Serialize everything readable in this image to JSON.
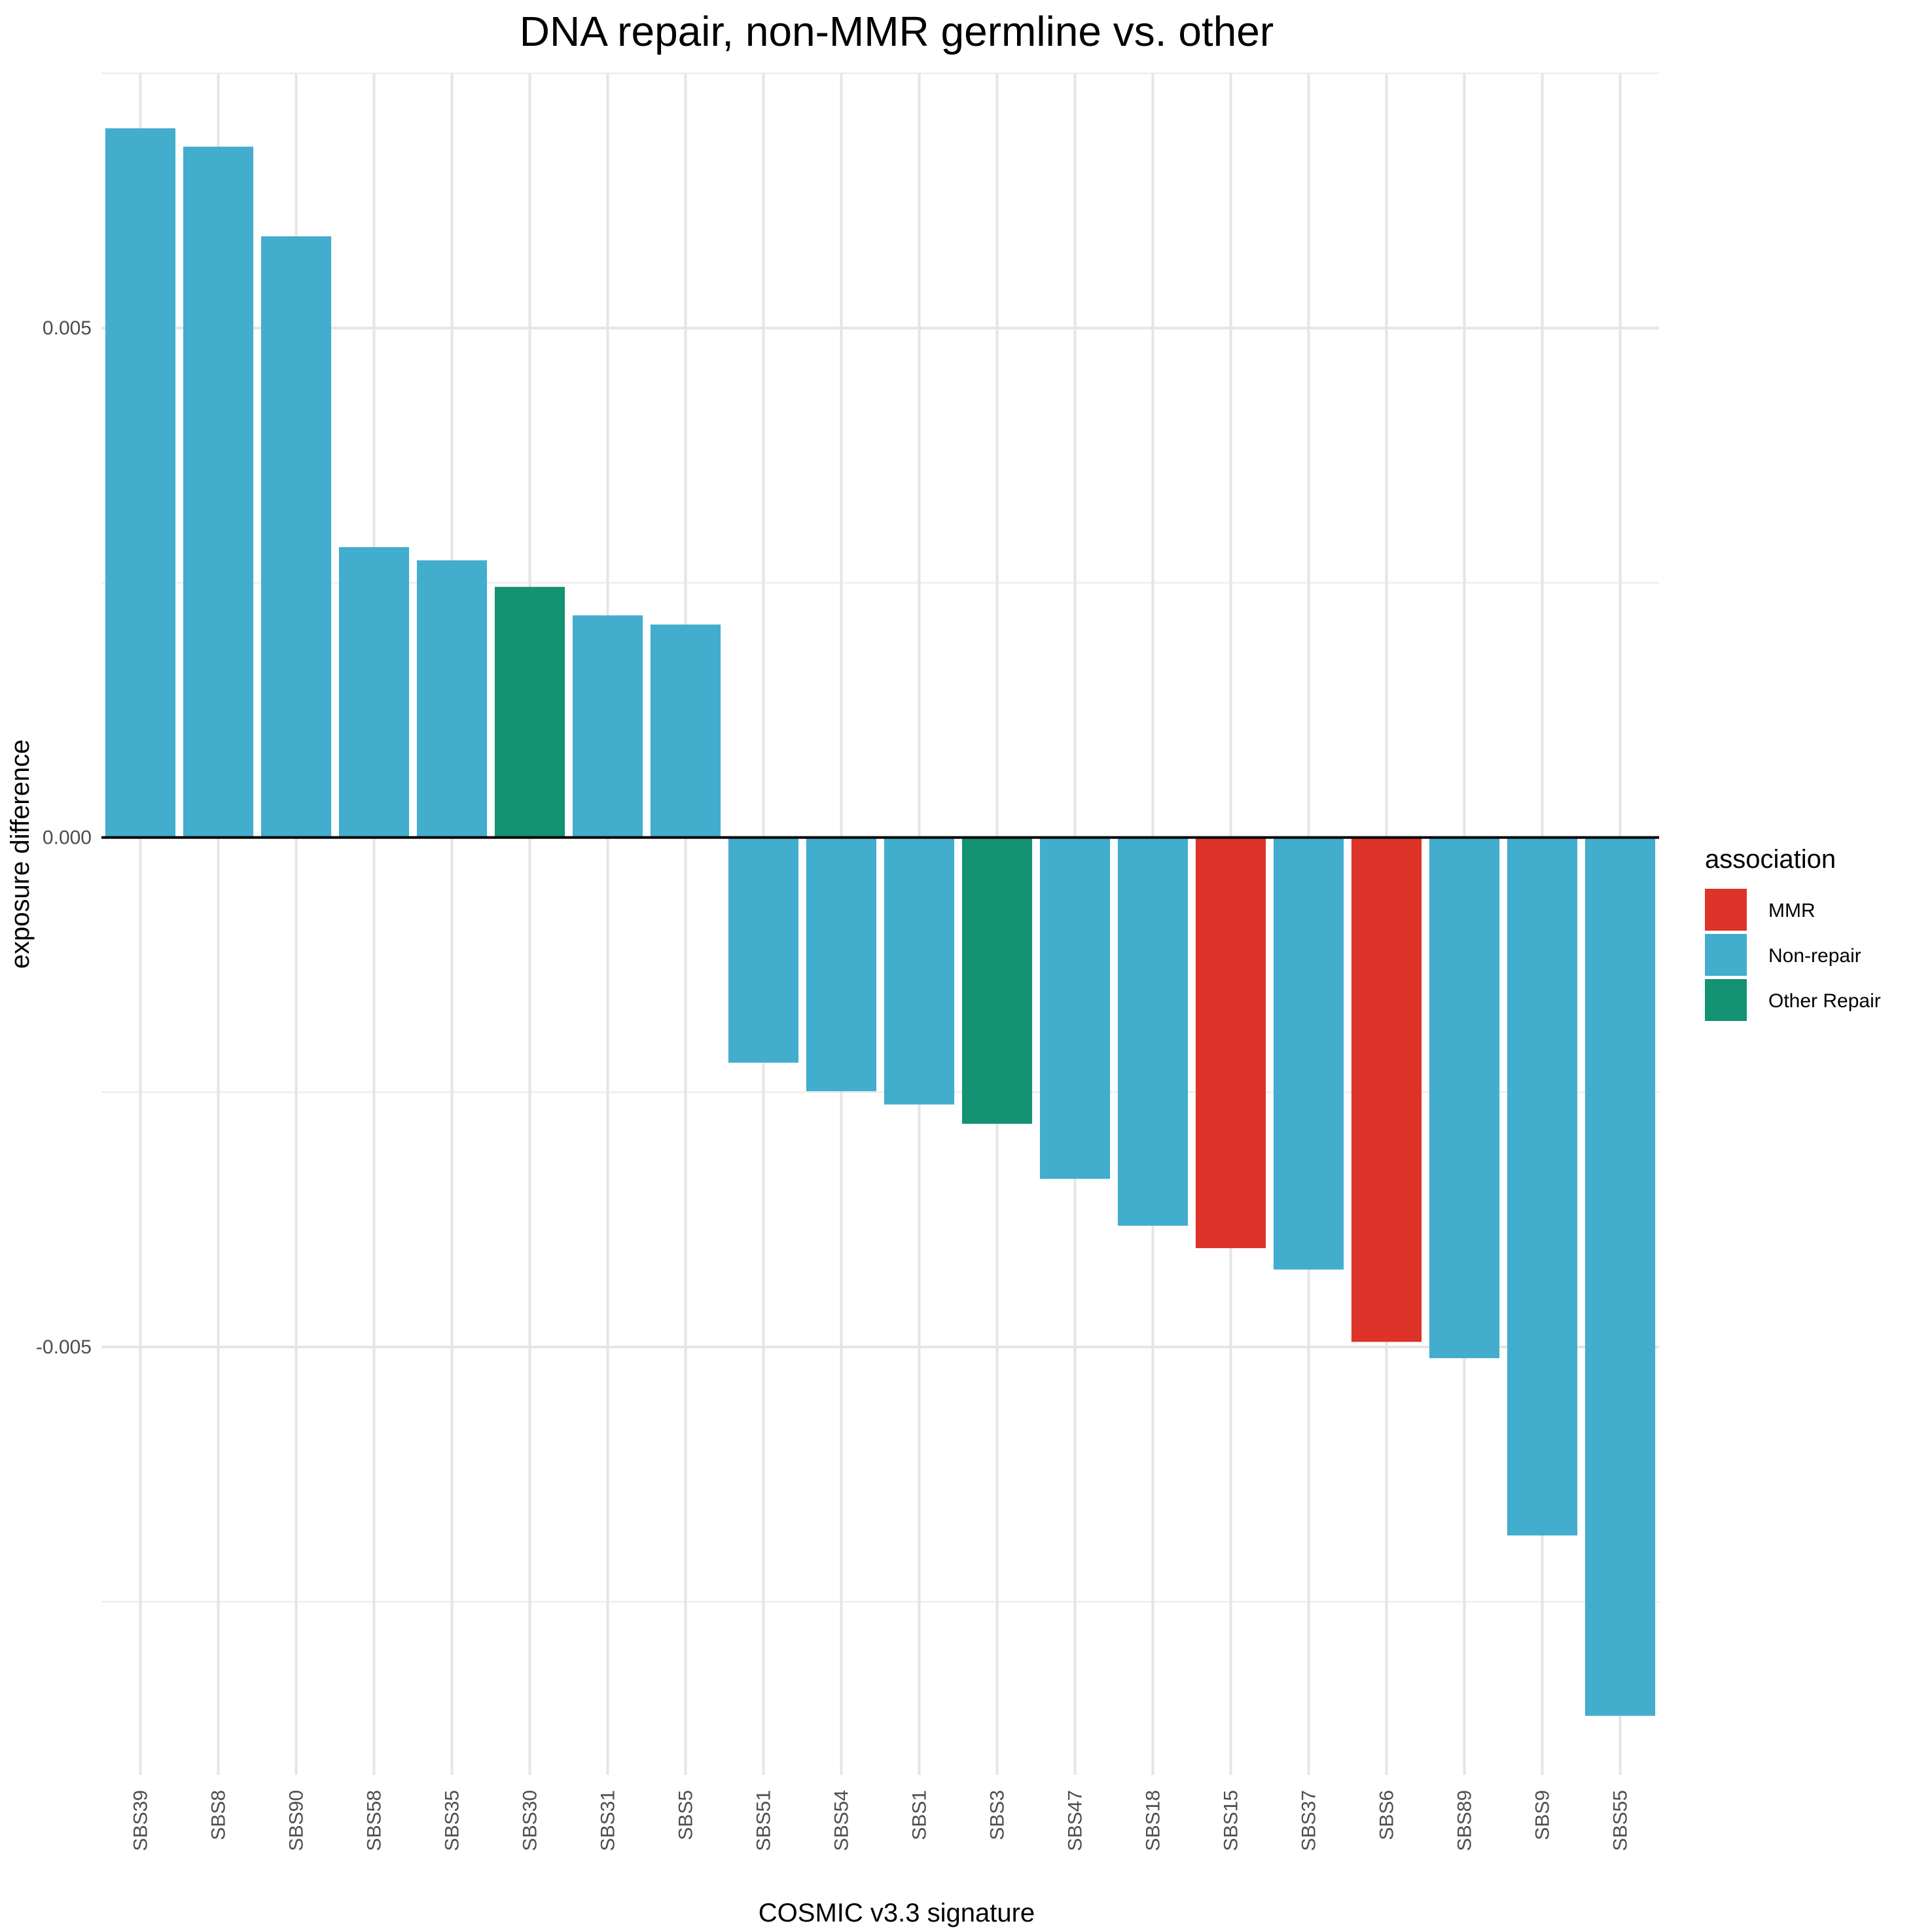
{
  "chart_data": {
    "type": "bar",
    "title": "DNA repair, non-MMR germline vs. other",
    "xlabel": "COSMIC v3.3 signature",
    "ylabel": "exposure difference",
    "ylim": [
      -0.0092,
      0.0075
    ],
    "y_ticks": [
      {
        "value": 0.005,
        "label": "0.005"
      },
      {
        "value": 0.0,
        "label": "0.000"
      },
      {
        "value": -0.005,
        "label": "-0.005"
      }
    ],
    "y_minor_ticks": [
      0.0075,
      0.0025,
      -0.0025,
      -0.0075
    ],
    "grid": true,
    "legend": {
      "title": "association",
      "placement": "right",
      "entries": [
        {
          "label": "MMR",
          "color": "#dd3328"
        },
        {
          "label": "Non-repair",
          "color": "#42adcc"
        },
        {
          "label": "Other Repair",
          "color": "#139274"
        }
      ]
    },
    "categories": [
      "SBS39",
      "SBS8",
      "SBS90",
      "SBS58",
      "SBS35",
      "SBS30",
      "SBS31",
      "SBS5",
      "SBS51",
      "SBS54",
      "SBS1",
      "SBS3",
      "SBS47",
      "SBS18",
      "SBS15",
      "SBS37",
      "SBS6",
      "SBS89",
      "SBS9",
      "SBS55"
    ],
    "values": [
      0.00696,
      0.00678,
      0.0059,
      0.00285,
      0.00272,
      0.00246,
      0.00218,
      0.00209,
      -0.00221,
      -0.00249,
      -0.00262,
      -0.00281,
      -0.00335,
      -0.00381,
      -0.00403,
      -0.00424,
      -0.00495,
      -0.00511,
      -0.00685,
      -0.00862
    ],
    "association": [
      "Non-repair",
      "Non-repair",
      "Non-repair",
      "Non-repair",
      "Non-repair",
      "Other Repair",
      "Non-repair",
      "Non-repair",
      "Non-repair",
      "Non-repair",
      "Non-repair",
      "Other Repair",
      "Non-repair",
      "Non-repair",
      "MMR",
      "Non-repair",
      "MMR",
      "Non-repair",
      "Non-repair",
      "Non-repair"
    ]
  }
}
